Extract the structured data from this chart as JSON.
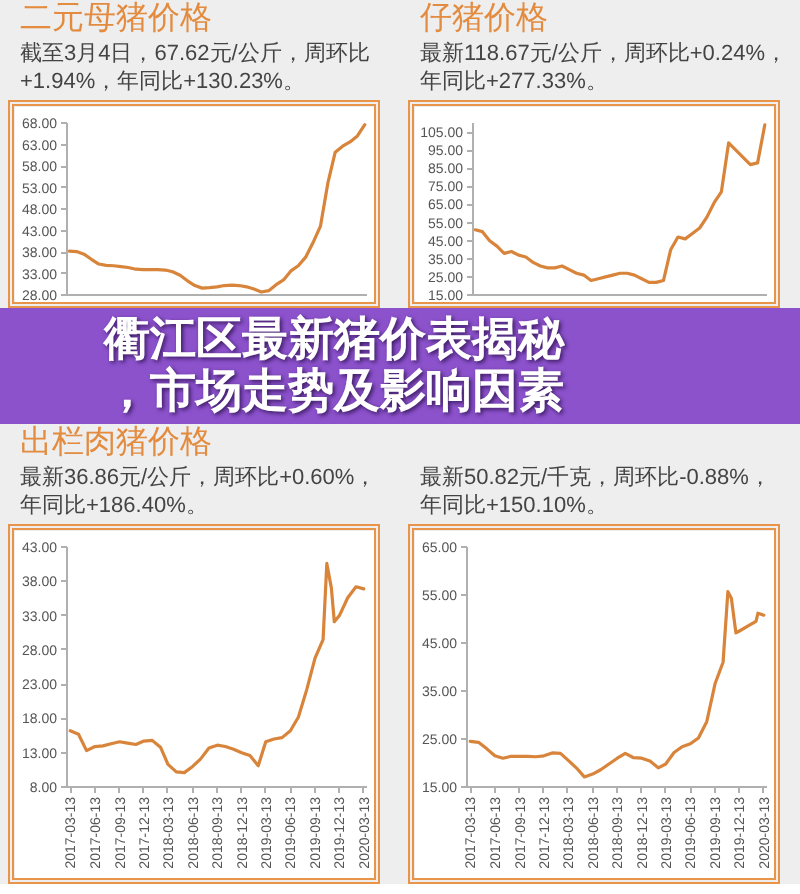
{
  "chart_data": [
    {
      "type": "line",
      "title": "二元母猪价格",
      "subtitle": "截至3月4日，67.62元/公斤，周环比+1.94%，年同比+130.23%。",
      "categories": [
        null,
        null,
        null,
        null,
        null,
        null,
        null,
        null,
        null,
        null,
        null,
        null,
        null,
        null,
        null,
        null,
        null,
        null,
        null,
        null,
        null,
        null,
        null,
        null,
        null,
        null,
        null,
        null,
        null,
        null,
        null,
        null,
        null,
        null,
        null,
        null,
        null,
        null,
        null,
        null,
        null
      ],
      "series": [
        {
          "color": "#d8843a",
          "values": [
            38.2,
            38.1,
            37.5,
            36.3,
            35.2,
            34.9,
            34.8,
            34.6,
            34.4,
            34.0,
            33.9,
            33.9,
            33.9,
            33.8,
            33.4,
            32.6,
            31.3,
            30.2,
            29.6,
            29.7,
            29.9,
            30.2,
            30.3,
            30.2,
            29.9,
            29.4,
            28.7,
            29.0,
            30.4,
            31.5,
            33.6,
            34.8,
            36.8,
            40.2,
            44.0,
            54.0,
            61.2,
            62.6,
            63.6,
            65.0,
            67.6
          ]
        }
      ],
      "ylim": [
        28,
        68
      ],
      "yticks": [
        {
          "value": 28,
          "label": "28.00"
        },
        {
          "value": 33,
          "label": "33.00"
        },
        {
          "value": 38,
          "label": "38.00"
        },
        {
          "value": 43,
          "label": "43.00"
        },
        {
          "value": 48,
          "label": "48.00"
        },
        {
          "value": 53,
          "label": "53.00"
        },
        {
          "value": 58,
          "label": "58.00"
        },
        {
          "value": 63,
          "label": "63.00"
        },
        {
          "value": 68,
          "label": "68.00"
        }
      ],
      "grid": false
    },
    {
      "type": "line",
      "title": "仔猪价格",
      "subtitle": "最新118.67元/公斤，周环比+0.24%，年同比+277.33%。",
      "categories": [
        null,
        null,
        null,
        null,
        null,
        null,
        null,
        null,
        null,
        null,
        null,
        null,
        null,
        null,
        null,
        null,
        null,
        null,
        null,
        null,
        null,
        null,
        null,
        null,
        null,
        null,
        null,
        null,
        null,
        null,
        null,
        null,
        null,
        null,
        null,
        null,
        null,
        null,
        null,
        null,
        null
      ],
      "series": [
        {
          "color": "#d8843a",
          "values": [
            51,
            50,
            45,
            42,
            38,
            39,
            37,
            36,
            33,
            31,
            30,
            30,
            31,
            29,
            27,
            26,
            23,
            24,
            25,
            26,
            27,
            27,
            26,
            24,
            22,
            22,
            23,
            40,
            47,
            46,
            49,
            52,
            58,
            66,
            72,
            99,
            95,
            91,
            87,
            88,
            109
          ]
        }
      ],
      "ylim": [
        15,
        110
      ],
      "yticks": [
        {
          "value": 15,
          "label": "15.00"
        },
        {
          "value": 25,
          "label": "25.00"
        },
        {
          "value": 35,
          "label": "35.00"
        },
        {
          "value": 45,
          "label": "45.00"
        },
        {
          "value": 55,
          "label": "55.00"
        },
        {
          "value": 65,
          "label": "65.00"
        },
        {
          "value": 75,
          "label": "75.00"
        },
        {
          "value": 85,
          "label": "85.00"
        },
        {
          "value": 95,
          "label": "95.00"
        },
        {
          "value": 105,
          "label": "105.00"
        }
      ],
      "grid": false
    },
    {
      "type": "other",
      "title": "衢江区最新猪价表揭秘，市场走势及影响因素"
    },
    {
      "type": "line",
      "title": "出栏肉猪价格",
      "subtitle": "最新36.86元/公斤，周环比+0.60%，年同比+186.40%。",
      "series": [
        {
          "color": "#d8843a",
          "x": [
            "2017-03-13",
            "2017-04-13",
            "2017-05-13",
            "2017-06-13",
            "2017-07-13",
            "2017-08-13",
            "2017-09-13",
            "2017-10-13",
            "2017-11-13",
            "2017-12-13",
            "2018-01-13",
            "2018-02-13",
            "2018-03-13",
            "2018-04-13",
            "2018-05-13",
            "2018-06-13",
            "2018-07-13",
            "2018-08-13",
            "2018-09-13",
            "2018-10-13",
            "2018-11-13",
            "2018-12-13",
            "2019-01-13",
            "2019-02-13",
            "2019-03-13",
            "2019-04-13",
            "2019-05-13",
            "2019-06-13",
            "2019-07-13",
            "2019-08-13",
            "2019-09-13",
            "2019-10-13",
            "2019-10-27",
            "2019-11-13",
            "2019-11-24",
            "2019-12-13",
            "2020-01-13",
            "2020-02-13",
            "2020-03-13"
          ],
          "values": [
            16.2,
            15.7,
            13.3,
            13.9,
            14.0,
            14.3,
            14.6,
            14.4,
            14.2,
            14.7,
            14.8,
            13.8,
            11.3,
            10.2,
            10.1,
            11.0,
            12.1,
            13.7,
            14.1,
            13.9,
            13.5,
            13.0,
            12.6,
            11.1,
            14.6,
            15.0,
            15.2,
            16.2,
            18.2,
            22.2,
            26.8,
            29.5,
            40.6,
            37.0,
            32.1,
            33.0,
            35.6,
            37.2,
            36.9
          ]
        }
      ],
      "xlim": [
        "2017-03-01",
        "2020-03-25"
      ],
      "xticks": [
        "2017-03-13",
        "2017-06-13",
        "2017-09-13",
        "2017-12-13",
        "2018-03-13",
        "2018-06-13",
        "2018-09-13",
        "2018-12-13",
        "2019-03-13",
        "2019-06-13",
        "2019-09-13",
        "2019-12-13",
        "2020-03-13"
      ],
      "ylim": [
        8,
        43
      ],
      "yticks": [
        {
          "value": 8,
          "label": "8.00"
        },
        {
          "value": 13,
          "label": "13.00"
        },
        {
          "value": 18,
          "label": "18.00"
        },
        {
          "value": 23,
          "label": "23.00"
        },
        {
          "value": 28,
          "label": "28.00"
        },
        {
          "value": 33,
          "label": "33.00"
        },
        {
          "value": 38,
          "label": "38.00"
        },
        {
          "value": 43,
          "label": "43.00"
        }
      ],
      "grid": false
    },
    {
      "type": "line",
      "subtitle": "最新50.82元/千克，周环比-0.88%，年同比+150.10%。",
      "series": [
        {
          "color": "#d8843a",
          "x": [
            "2017-03-13",
            "2017-04-13",
            "2017-05-13",
            "2017-06-13",
            "2017-07-13",
            "2017-08-13",
            "2017-09-13",
            "2017-10-13",
            "2017-11-13",
            "2017-12-13",
            "2018-01-13",
            "2018-02-13",
            "2018-03-13",
            "2018-04-13",
            "2018-05-13",
            "2018-06-13",
            "2018-07-13",
            "2018-08-13",
            "2018-09-13",
            "2018-10-13",
            "2018-11-13",
            "2018-12-13",
            "2019-01-13",
            "2019-02-13",
            "2019-03-13",
            "2019-04-13",
            "2019-05-13",
            "2019-06-13",
            "2019-07-13",
            "2019-08-13",
            "2019-09-13",
            "2019-10-13",
            "2019-10-31",
            "2019-11-13",
            "2019-11-30",
            "2019-12-13",
            "2020-01-13",
            "2020-02-13",
            "2020-02-20",
            "2020-03-13"
          ],
          "values": [
            24.5,
            24.3,
            23.0,
            21.5,
            21.0,
            21.4,
            21.4,
            21.4,
            21.3,
            21.5,
            22.1,
            22.0,
            20.6,
            19.0,
            17.1,
            17.7,
            18.6,
            19.8,
            21.0,
            22.0,
            21.1,
            21.0,
            20.4,
            19.0,
            19.8,
            22.2,
            23.4,
            24.0,
            25.2,
            28.6,
            36.5,
            41.0,
            55.7,
            54.3,
            47.1,
            47.5,
            48.5,
            49.5,
            51.2,
            50.8
          ]
        }
      ],
      "xlim": [
        "2017-03-01",
        "2020-03-25"
      ],
      "xticks": [
        "2017-03-13",
        "2017-06-13",
        "2017-09-13",
        "2017-12-13",
        "2018-03-13",
        "2018-06-13",
        "2018-09-13",
        "2018-12-13",
        "2019-03-13",
        "2019-06-13",
        "2019-09-13",
        "2019-12-13",
        "2020-03-13"
      ],
      "ylim": [
        15,
        65
      ],
      "yticks": [
        {
          "value": 15,
          "label": "15.00"
        },
        {
          "value": 25,
          "label": "25.00"
        },
        {
          "value": 35,
          "label": "35.00"
        },
        {
          "value": 45,
          "label": "45.00"
        },
        {
          "value": 55,
          "label": "55.00"
        },
        {
          "value": 65,
          "label": "65.00"
        }
      ],
      "grid": false
    }
  ]
}
